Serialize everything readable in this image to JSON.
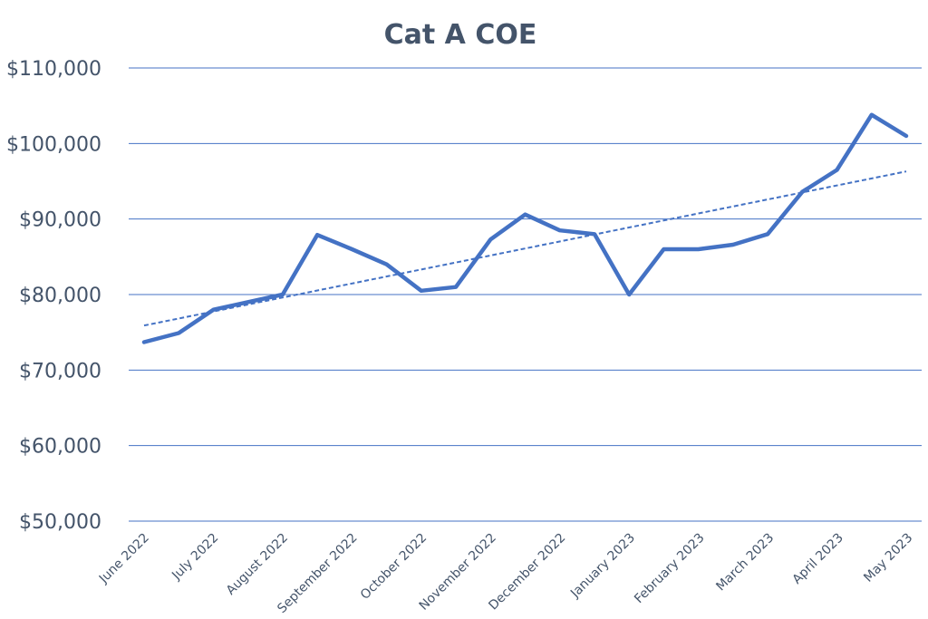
{
  "chart_data": {
    "type": "line",
    "title": "Cat A COE",
    "xlabel": "",
    "ylabel": "",
    "ylim": [
      50000,
      110000
    ],
    "ytick_values": [
      50000,
      60000,
      70000,
      80000,
      90000,
      100000,
      110000
    ],
    "ytick_labels": [
      "$50,000",
      "$60,000",
      "$70,000",
      "$80,000",
      "$90,000",
      "$100,000",
      "$110,000"
    ],
    "xtick_labels": [
      "June 2022",
      "July 2022",
      "August 2022",
      "September 2022",
      "October 2022",
      "November 2022",
      "December 2022",
      "January 2023",
      "February 2023",
      "March 2023",
      "April 2023",
      "May 2023"
    ],
    "grid": true,
    "legend": "none",
    "series": [
      {
        "values": [
          73700,
          74900,
          78000,
          79000,
          80000,
          87900,
          86000,
          84000,
          80500,
          81000,
          87300,
          90600,
          88500,
          88000,
          80000,
          86000,
          86000,
          86600,
          88000,
          93600,
          96500,
          103800,
          101000
        ],
        "color": "#4472c4",
        "style": "solid"
      },
      {
        "kind": "linear trendline",
        "values": [
          75900,
          96300
        ],
        "color": "#4472c4",
        "style": "dashed"
      }
    ]
  }
}
